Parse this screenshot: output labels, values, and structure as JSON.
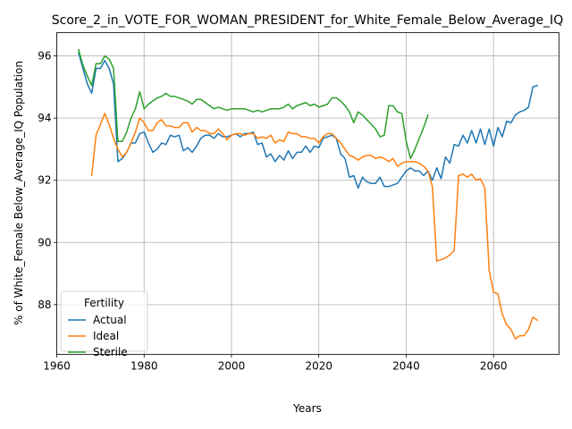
{
  "chart_data": {
    "type": "line",
    "title": "Score_2_in_VOTE_FOR_WOMAN_PRESIDENT_for_White_Female_Below_Average_IQ",
    "xlabel": "Years",
    "ylabel": "% of White_Female Below_Average_IQ Population",
    "xlim": [
      1960,
      2075
    ],
    "ylim": [
      86.4,
      96.75
    ],
    "xticks": [
      1960,
      1980,
      2000,
      2020,
      2040,
      2060
    ],
    "yticks": [
      88,
      90,
      92,
      94,
      96
    ],
    "grid": true,
    "legend": {
      "title": "Fertility",
      "placement": "lower-left"
    },
    "series": [
      {
        "name": "Actual",
        "color": "#1f77b4",
        "points": [
          [
            1965,
            96.1
          ],
          [
            1966,
            95.6
          ],
          [
            1967,
            95.1
          ],
          [
            1968,
            94.8
          ],
          [
            1969,
            95.6
          ],
          [
            1970,
            95.6
          ],
          [
            1971,
            95.85
          ],
          [
            1972,
            95.6
          ],
          [
            1973,
            95.1
          ],
          [
            1974,
            92.6
          ],
          [
            1975,
            92.7
          ],
          [
            1976,
            92.9
          ],
          [
            1977,
            93.2
          ],
          [
            1978,
            93.2
          ],
          [
            1979,
            93.5
          ],
          [
            1980,
            93.55
          ],
          [
            1981,
            93.2
          ],
          [
            1982,
            92.9
          ],
          [
            1983,
            93.0
          ],
          [
            1984,
            93.2
          ],
          [
            1985,
            93.15
          ],
          [
            1986,
            93.45
          ],
          [
            1987,
            93.4
          ],
          [
            1988,
            93.45
          ],
          [
            1989,
            92.95
          ],
          [
            1990,
            93.05
          ],
          [
            1991,
            92.9
          ],
          [
            1992,
            93.1
          ],
          [
            1993,
            93.35
          ],
          [
            1994,
            93.45
          ],
          [
            1995,
            93.45
          ],
          [
            1996,
            93.35
          ],
          [
            1997,
            93.5
          ],
          [
            1998,
            93.4
          ],
          [
            1999,
            93.4
          ],
          [
            2000,
            93.45
          ],
          [
            2001,
            93.5
          ],
          [
            2002,
            93.4
          ],
          [
            2003,
            93.5
          ],
          [
            2004,
            93.5
          ],
          [
            2005,
            93.55
          ],
          [
            2006,
            93.15
          ],
          [
            2007,
            93.2
          ],
          [
            2008,
            92.75
          ],
          [
            2009,
            92.85
          ],
          [
            2010,
            92.6
          ],
          [
            2011,
            92.8
          ],
          [
            2012,
            92.65
          ],
          [
            2013,
            92.95
          ],
          [
            2014,
            92.7
          ],
          [
            2015,
            92.9
          ],
          [
            2016,
            92.9
          ],
          [
            2017,
            93.1
          ],
          [
            2018,
            92.9
          ],
          [
            2019,
            93.1
          ],
          [
            2020,
            93.05
          ],
          [
            2021,
            93.35
          ],
          [
            2022,
            93.4
          ],
          [
            2023,
            93.45
          ],
          [
            2024,
            93.35
          ],
          [
            2025,
            92.85
          ],
          [
            2026,
            92.7
          ],
          [
            2027,
            92.1
          ],
          [
            2028,
            92.15
          ],
          [
            2029,
            91.75
          ],
          [
            2030,
            92.1
          ],
          [
            2031,
            91.95
          ],
          [
            2032,
            91.9
          ],
          [
            2033,
            91.9
          ],
          [
            2034,
            92.1
          ],
          [
            2035,
            91.8
          ],
          [
            2036,
            91.8
          ],
          [
            2037,
            91.85
          ],
          [
            2038,
            91.9
          ],
          [
            2039,
            92.1
          ],
          [
            2040,
            92.3
          ],
          [
            2041,
            92.4
          ],
          [
            2042,
            92.3
          ],
          [
            2043,
            92.3
          ],
          [
            2044,
            92.15
          ],
          [
            2045,
            92.3
          ],
          [
            2046,
            92.0
          ],
          [
            2047,
            92.4
          ],
          [
            2048,
            92.05
          ],
          [
            2049,
            92.75
          ],
          [
            2050,
            92.55
          ],
          [
            2051,
            93.15
          ],
          [
            2052,
            93.1
          ],
          [
            2053,
            93.45
          ],
          [
            2054,
            93.2
          ],
          [
            2055,
            93.6
          ],
          [
            2056,
            93.2
          ],
          [
            2057,
            93.65
          ],
          [
            2058,
            93.15
          ],
          [
            2059,
            93.65
          ],
          [
            2060,
            93.1
          ],
          [
            2061,
            93.7
          ],
          [
            2062,
            93.4
          ],
          [
            2063,
            93.9
          ],
          [
            2064,
            93.85
          ],
          [
            2065,
            94.1
          ],
          [
            2066,
            94.2
          ],
          [
            2067,
            94.25
          ],
          [
            2068,
            94.35
          ],
          [
            2069,
            95.0
          ],
          [
            2070,
            95.05
          ]
        ]
      },
      {
        "name": "Ideal",
        "color": "#ff7f0e",
        "points": [
          [
            1968,
            92.15
          ],
          [
            1969,
            93.45
          ],
          [
            1970,
            93.8
          ],
          [
            1971,
            94.15
          ],
          [
            1972,
            93.8
          ],
          [
            1973,
            93.35
          ],
          [
            1974,
            93.0
          ],
          [
            1975,
            92.75
          ],
          [
            1976,
            92.9
          ],
          [
            1977,
            93.2
          ],
          [
            1978,
            93.55
          ],
          [
            1979,
            94.0
          ],
          [
            1980,
            93.85
          ],
          [
            1981,
            93.6
          ],
          [
            1982,
            93.6
          ],
          [
            1983,
            93.85
          ],
          [
            1984,
            93.95
          ],
          [
            1985,
            93.75
          ],
          [
            1986,
            93.75
          ],
          [
            1987,
            93.7
          ],
          [
            1988,
            93.7
          ],
          [
            1989,
            93.85
          ],
          [
            1990,
            93.85
          ],
          [
            1991,
            93.55
          ],
          [
            1992,
            93.7
          ],
          [
            1993,
            93.6
          ],
          [
            1994,
            93.6
          ],
          [
            1995,
            93.5
          ],
          [
            1996,
            93.5
          ],
          [
            1997,
            93.65
          ],
          [
            1998,
            93.5
          ],
          [
            1999,
            93.3
          ],
          [
            2000,
            93.45
          ],
          [
            2001,
            93.5
          ],
          [
            2002,
            93.5
          ],
          [
            2003,
            93.45
          ],
          [
            2004,
            93.5
          ],
          [
            2005,
            93.5
          ],
          [
            2006,
            93.35
          ],
          [
            2007,
            93.4
          ],
          [
            2008,
            93.35
          ],
          [
            2009,
            93.45
          ],
          [
            2010,
            93.2
          ],
          [
            2011,
            93.3
          ],
          [
            2012,
            93.25
          ],
          [
            2013,
            93.55
          ],
          [
            2014,
            93.5
          ],
          [
            2015,
            93.5
          ],
          [
            2016,
            93.4
          ],
          [
            2017,
            93.4
          ],
          [
            2018,
            93.35
          ],
          [
            2019,
            93.35
          ],
          [
            2020,
            93.2
          ],
          [
            2021,
            93.4
          ],
          [
            2022,
            93.5
          ],
          [
            2023,
            93.5
          ],
          [
            2024,
            93.35
          ],
          [
            2025,
            93.2
          ],
          [
            2026,
            93.0
          ],
          [
            2027,
            92.8
          ],
          [
            2028,
            92.75
          ],
          [
            2029,
            92.65
          ],
          [
            2030,
            92.75
          ],
          [
            2031,
            92.8
          ],
          [
            2032,
            92.8
          ],
          [
            2033,
            92.7
          ],
          [
            2034,
            92.75
          ],
          [
            2035,
            92.7
          ],
          [
            2036,
            92.6
          ],
          [
            2037,
            92.7
          ],
          [
            2038,
            92.45
          ],
          [
            2039,
            92.55
          ],
          [
            2040,
            92.6
          ],
          [
            2041,
            92.6
          ],
          [
            2042,
            92.6
          ],
          [
            2043,
            92.55
          ],
          [
            2044,
            92.45
          ],
          [
            2045,
            92.3
          ],
          [
            2046,
            91.8
          ],
          [
            2047,
            89.4
          ],
          [
            2048,
            89.45
          ],
          [
            2049,
            89.5
          ],
          [
            2050,
            89.6
          ],
          [
            2051,
            89.75
          ],
          [
            2052,
            92.15
          ],
          [
            2053,
            92.2
          ],
          [
            2054,
            92.1
          ],
          [
            2055,
            92.2
          ],
          [
            2056,
            92.0
          ],
          [
            2057,
            92.05
          ],
          [
            2058,
            91.75
          ],
          [
            2059,
            89.1
          ],
          [
            2060,
            88.4
          ],
          [
            2061,
            88.35
          ],
          [
            2062,
            87.7
          ],
          [
            2063,
            87.35
          ],
          [
            2064,
            87.2
          ],
          [
            2065,
            86.9
          ],
          [
            2066,
            87.0
          ],
          [
            2067,
            87.0
          ],
          [
            2068,
            87.2
          ],
          [
            2069,
            87.6
          ],
          [
            2070,
            87.5
          ]
        ]
      },
      {
        "name": "Sterile",
        "color": "#2ca02c",
        "points": [
          [
            1965,
            96.2
          ],
          [
            1966,
            95.7
          ],
          [
            1967,
            95.35
          ],
          [
            1968,
            95.05
          ],
          [
            1969,
            95.75
          ],
          [
            1970,
            95.75
          ],
          [
            1971,
            96.0
          ],
          [
            1972,
            95.9
          ],
          [
            1973,
            95.6
          ],
          [
            1974,
            93.25
          ],
          [
            1975,
            93.25
          ],
          [
            1976,
            93.55
          ],
          [
            1977,
            94.0
          ],
          [
            1978,
            94.3
          ],
          [
            1979,
            94.85
          ],
          [
            1980,
            94.3
          ],
          [
            1981,
            94.45
          ],
          [
            1982,
            94.55
          ],
          [
            1983,
            94.65
          ],
          [
            1984,
            94.7
          ],
          [
            1985,
            94.8
          ],
          [
            1986,
            94.7
          ],
          [
            1987,
            94.7
          ],
          [
            1988,
            94.65
          ],
          [
            1989,
            94.6
          ],
          [
            1990,
            94.55
          ],
          [
            1991,
            94.45
          ],
          [
            1992,
            94.6
          ],
          [
            1993,
            94.6
          ],
          [
            1994,
            94.5
          ],
          [
            1995,
            94.4
          ],
          [
            1996,
            94.3
          ],
          [
            1997,
            94.35
          ],
          [
            1998,
            94.3
          ],
          [
            1999,
            94.25
          ],
          [
            2000,
            94.3
          ],
          [
            2001,
            94.3
          ],
          [
            2002,
            94.3
          ],
          [
            2003,
            94.3
          ],
          [
            2004,
            94.25
          ],
          [
            2005,
            94.2
          ],
          [
            2006,
            94.25
          ],
          [
            2007,
            94.2
          ],
          [
            2008,
            94.25
          ],
          [
            2009,
            94.3
          ],
          [
            2010,
            94.3
          ],
          [
            2011,
            94.3
          ],
          [
            2012,
            94.35
          ],
          [
            2013,
            94.45
          ],
          [
            2014,
            94.3
          ],
          [
            2015,
            94.4
          ],
          [
            2016,
            94.45
          ],
          [
            2017,
            94.5
          ],
          [
            2018,
            94.4
          ],
          [
            2019,
            94.45
          ],
          [
            2020,
            94.35
          ],
          [
            2021,
            94.4
          ],
          [
            2022,
            94.45
          ],
          [
            2023,
            94.65
          ],
          [
            2024,
            94.65
          ],
          [
            2025,
            94.55
          ],
          [
            2026,
            94.4
          ],
          [
            2027,
            94.2
          ],
          [
            2028,
            93.85
          ],
          [
            2029,
            94.2
          ],
          [
            2030,
            94.1
          ],
          [
            2031,
            93.95
          ],
          [
            2032,
            93.8
          ],
          [
            2033,
            93.65
          ],
          [
            2034,
            93.4
          ],
          [
            2035,
            93.45
          ],
          [
            2036,
            94.4
          ],
          [
            2037,
            94.4
          ],
          [
            2038,
            94.2
          ],
          [
            2039,
            94.15
          ],
          [
            2040,
            93.25
          ],
          [
            2041,
            92.7
          ],
          [
            2042,
            93.0
          ],
          [
            2043,
            93.35
          ],
          [
            2044,
            93.7
          ],
          [
            2045,
            94.1
          ]
        ]
      }
    ]
  }
}
